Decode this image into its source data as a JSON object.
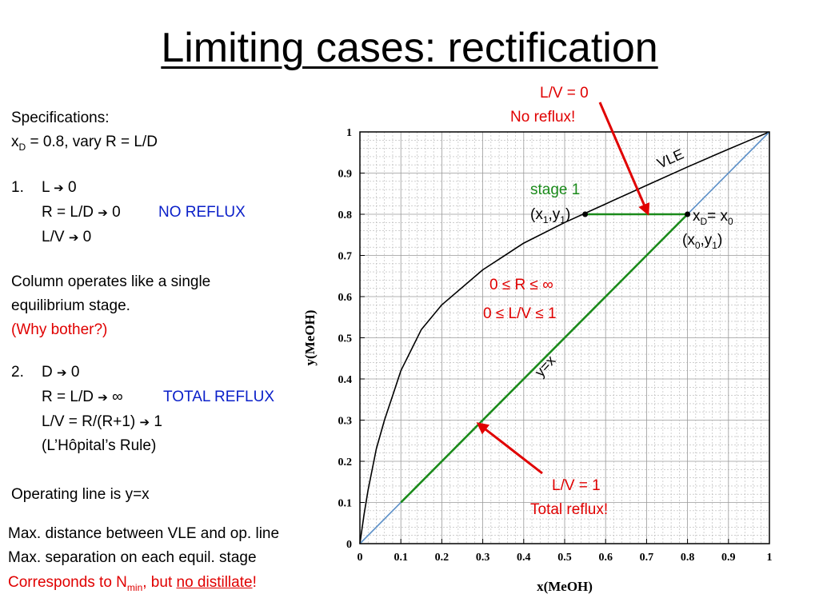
{
  "slide": {
    "title": "Limiting cases: rectification"
  },
  "left": {
    "spec_label": "Specifications:",
    "spec_x": "x",
    "spec_x_sub": "D",
    "spec_rest": " = 0.8, vary R = L/D",
    "case1_num": "1.",
    "case1_l1_a": "L ",
    "case1_l1_b": " 0",
    "case1_l2_a": "R = L/D ",
    "case1_l2_b": " 0",
    "case1_tag": "NO REFLUX",
    "case1_l3_a": "L/V ",
    "case1_l3_b": " 0",
    "single_line1": "Column operates like a single",
    "single_line2": "equilibrium stage.",
    "why": "(Why bother?)",
    "case2_num": "2.",
    "case2_l1_a": "D ",
    "case2_l1_b": " 0",
    "case2_l2_a": "R = L/D ",
    "case2_l2_b": " ∞",
    "case2_tag": "TOTAL REFLUX",
    "case2_l3_a": "L/V = R/(R+1) ",
    "case2_l3_b": " 1",
    "case2_l4": "(L’Hôpital’s Rule)",
    "opline": "Operating line is y=x",
    "bottom1": "Max. distance between VLE and op. line",
    "bottom2": "Max. separation on each equil. stage",
    "bottom3_a": "Corresponds to N",
    "bottom3_sub": "min",
    "bottom3_b": ", but ",
    "bottom3_u": "no distillate",
    "bottom3_c": "!",
    "arrow_glyph": "➔"
  },
  "annotations": {
    "lv0_line1": "L/V = 0",
    "lv0_line2": "No reflux!",
    "stage1": "stage 1",
    "x1y1_a": "(x",
    "x1y1_sub1": "1",
    "x1y1_b": ",y",
    "x1y1_sub2": "1",
    "x1y1_c": ")",
    "xd_a": "x",
    "xd_sub": "D",
    "xd_b": "= x",
    "xd_sub0": "0",
    "x0y1_a": "(x",
    "x0y1_sub0": "0",
    "x0y1_b": ",y",
    "x0y1_sub1": "1",
    "x0y1_c": ")",
    "r_range": "0 ≤ R ≤  ∞",
    "lv_range": "0 ≤ L/V ≤  1",
    "lv1_line1": "L/V = 1",
    "lv1_line2": "Total reflux!",
    "vle_label": "VLE",
    "yx_label": "y=x"
  },
  "chart_data": {
    "type": "line",
    "xlabel": "x(MeOH)",
    "ylabel": "y(MeOH)",
    "xlim": [
      0,
      1
    ],
    "ylim": [
      0,
      1
    ],
    "grid": true,
    "x_ticks": [
      "0",
      "0.1",
      "0.2",
      "0.3",
      "0.4",
      "0.5",
      "0.6",
      "0.7",
      "0.8",
      "0.9",
      "1"
    ],
    "y_ticks": [
      "0",
      "0.1",
      "0.2",
      "0.3",
      "0.4",
      "0.5",
      "0.6",
      "0.7",
      "0.8",
      "0.9",
      "1"
    ],
    "series": [
      {
        "id": "vle",
        "color": "#000000",
        "x": [
          0,
          0.01,
          0.02,
          0.04,
          0.06,
          0.08,
          0.1,
          0.15,
          0.2,
          0.3,
          0.4,
          0.5,
          0.6,
          0.7,
          0.8,
          0.9,
          0.95,
          1.0
        ],
        "y": [
          0,
          0.07,
          0.13,
          0.23,
          0.3,
          0.36,
          0.42,
          0.52,
          0.58,
          0.665,
          0.73,
          0.78,
          0.825,
          0.87,
          0.915,
          0.958,
          0.979,
          1.0
        ]
      },
      {
        "id": "diagonal",
        "color": "#5b8fc7",
        "x": [
          0,
          1
        ],
        "y": [
          0,
          1
        ]
      },
      {
        "id": "operating-line",
        "color": "#1a8a1a",
        "x": [
          0.1,
          0.8
        ],
        "y": [
          0.1,
          0.8
        ]
      },
      {
        "id": "stage-1-step",
        "color": "#1a8a1a",
        "x": [
          0.55,
          0.8
        ],
        "y": [
          0.8,
          0.8
        ]
      }
    ],
    "points": [
      {
        "id": "x1y1",
        "x": 0.55,
        "y": 0.8
      },
      {
        "id": "xD",
        "x": 0.8,
        "y": 0.8
      }
    ],
    "arrow_color": "#e00000"
  }
}
